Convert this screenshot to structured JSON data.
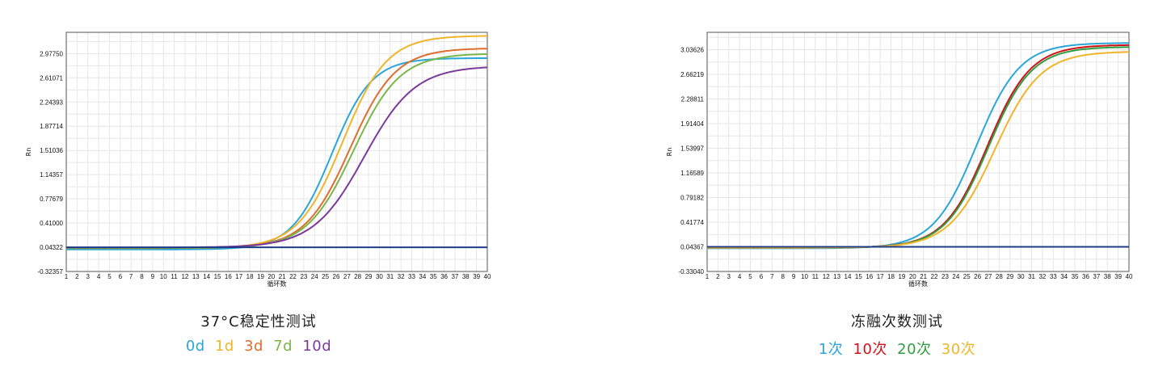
{
  "chart_data": [
    {
      "type": "line",
      "title": "37°C稳定性测试",
      "xlabel": "循环数",
      "ylabel": "Rn",
      "x": [
        1,
        2,
        3,
        4,
        5,
        6,
        7,
        8,
        9,
        10,
        11,
        12,
        13,
        14,
        15,
        16,
        17,
        18,
        19,
        20,
        21,
        22,
        23,
        24,
        25,
        26,
        27,
        28,
        29,
        30,
        31,
        32,
        33,
        34,
        35,
        36,
        37,
        38,
        39,
        40
      ],
      "xlim": [
        1,
        40
      ],
      "ylim": [
        -0.32357,
        3.3
      ],
      "yticks": [
        -0.32357,
        0.04322,
        0.41,
        0.77679,
        1.14357,
        1.51036,
        1.87714,
        2.24393,
        2.61071,
        2.9775
      ],
      "ytick_labels": [
        "-0.32357",
        "0.04322",
        "0.41000",
        "0.77679",
        "1.14357",
        "1.51036",
        "1.87714",
        "2.24393",
        "2.61071",
        "2.97750"
      ],
      "grid": true,
      "legend": [
        {
          "label": "0d",
          "color": "#2aa6d8"
        },
        {
          "label": "1d",
          "color": "#f0b429"
        },
        {
          "label": "3d",
          "color": "#e06c2d"
        },
        {
          "label": "7d",
          "color": "#7ab648"
        },
        {
          "label": "10d",
          "color": "#7a3a9a"
        }
      ],
      "series": [
        {
          "color": "#2aa6d8",
          "baseline": 0.01,
          "plateau": 2.9,
          "midpoint": 25.6,
          "slope": 1.85
        },
        {
          "color": "#f0b429",
          "baseline": 0.03,
          "plateau": 3.22,
          "midpoint": 26.6,
          "slope": 2.05
        },
        {
          "color": "#e06c2d",
          "baseline": 0.03,
          "plateau": 3.03,
          "midpoint": 27.3,
          "slope": 2.1
        },
        {
          "color": "#7ab648",
          "baseline": 0.03,
          "plateau": 2.95,
          "midpoint": 27.6,
          "slope": 2.15
        },
        {
          "color": "#7a3a9a",
          "baseline": 0.04,
          "plateau": 2.75,
          "midpoint": 28.6,
          "slope": 2.35
        },
        {
          "color": "#1f3c88",
          "baseline": 0.043,
          "plateau": 0.0,
          "midpoint": 30,
          "slope": 2
        }
      ]
    },
    {
      "type": "line",
      "title": "冻融次数测试",
      "xlabel": "循环数",
      "ylabel": "Rn",
      "x": [
        1,
        2,
        3,
        4,
        5,
        6,
        7,
        8,
        9,
        10,
        11,
        12,
        13,
        14,
        15,
        16,
        17,
        18,
        19,
        20,
        21,
        22,
        23,
        24,
        25,
        26,
        27,
        28,
        29,
        30,
        31,
        32,
        33,
        34,
        35,
        36,
        37,
        38,
        39,
        40
      ],
      "xlim": [
        1,
        40
      ],
      "ylim": [
        -0.3304,
        3.3
      ],
      "yticks": [
        -0.3304,
        0.04367,
        0.41774,
        0.79182,
        1.16589,
        1.53997,
        1.91404,
        2.28811,
        2.66219,
        3.03626
      ],
      "ytick_labels": [
        "-0.33040",
        "0.04367",
        "0.41774",
        "0.79182",
        "1.16589",
        "1.53997",
        "1.91404",
        "2.28811",
        "2.66219",
        "3.03626"
      ],
      "grid": true,
      "legend": [
        {
          "label": "1次",
          "color": "#2aa6d8"
        },
        {
          "label": "10次",
          "color": "#d0121b"
        },
        {
          "label": "20次",
          "color": "#2e9e3e"
        },
        {
          "label": "30次",
          "color": "#f0b429"
        }
      ],
      "series": [
        {
          "color": "#2aa6d8",
          "baseline": 0.02,
          "plateau": 3.12,
          "midpoint": 25.9,
          "slope": 2.0
        },
        {
          "color": "#d0121b",
          "baseline": 0.03,
          "plateau": 3.08,
          "midpoint": 26.9,
          "slope": 2.0
        },
        {
          "color": "#2e9e3e",
          "baseline": 0.03,
          "plateau": 3.05,
          "midpoint": 27.0,
          "slope": 2.0
        },
        {
          "color": "#f0b429",
          "baseline": 0.03,
          "plateau": 2.98,
          "midpoint": 27.6,
          "slope": 2.1
        },
        {
          "color": "#1f3c88",
          "baseline": 0.044,
          "plateau": 0.0,
          "midpoint": 30,
          "slope": 2
        }
      ]
    }
  ]
}
